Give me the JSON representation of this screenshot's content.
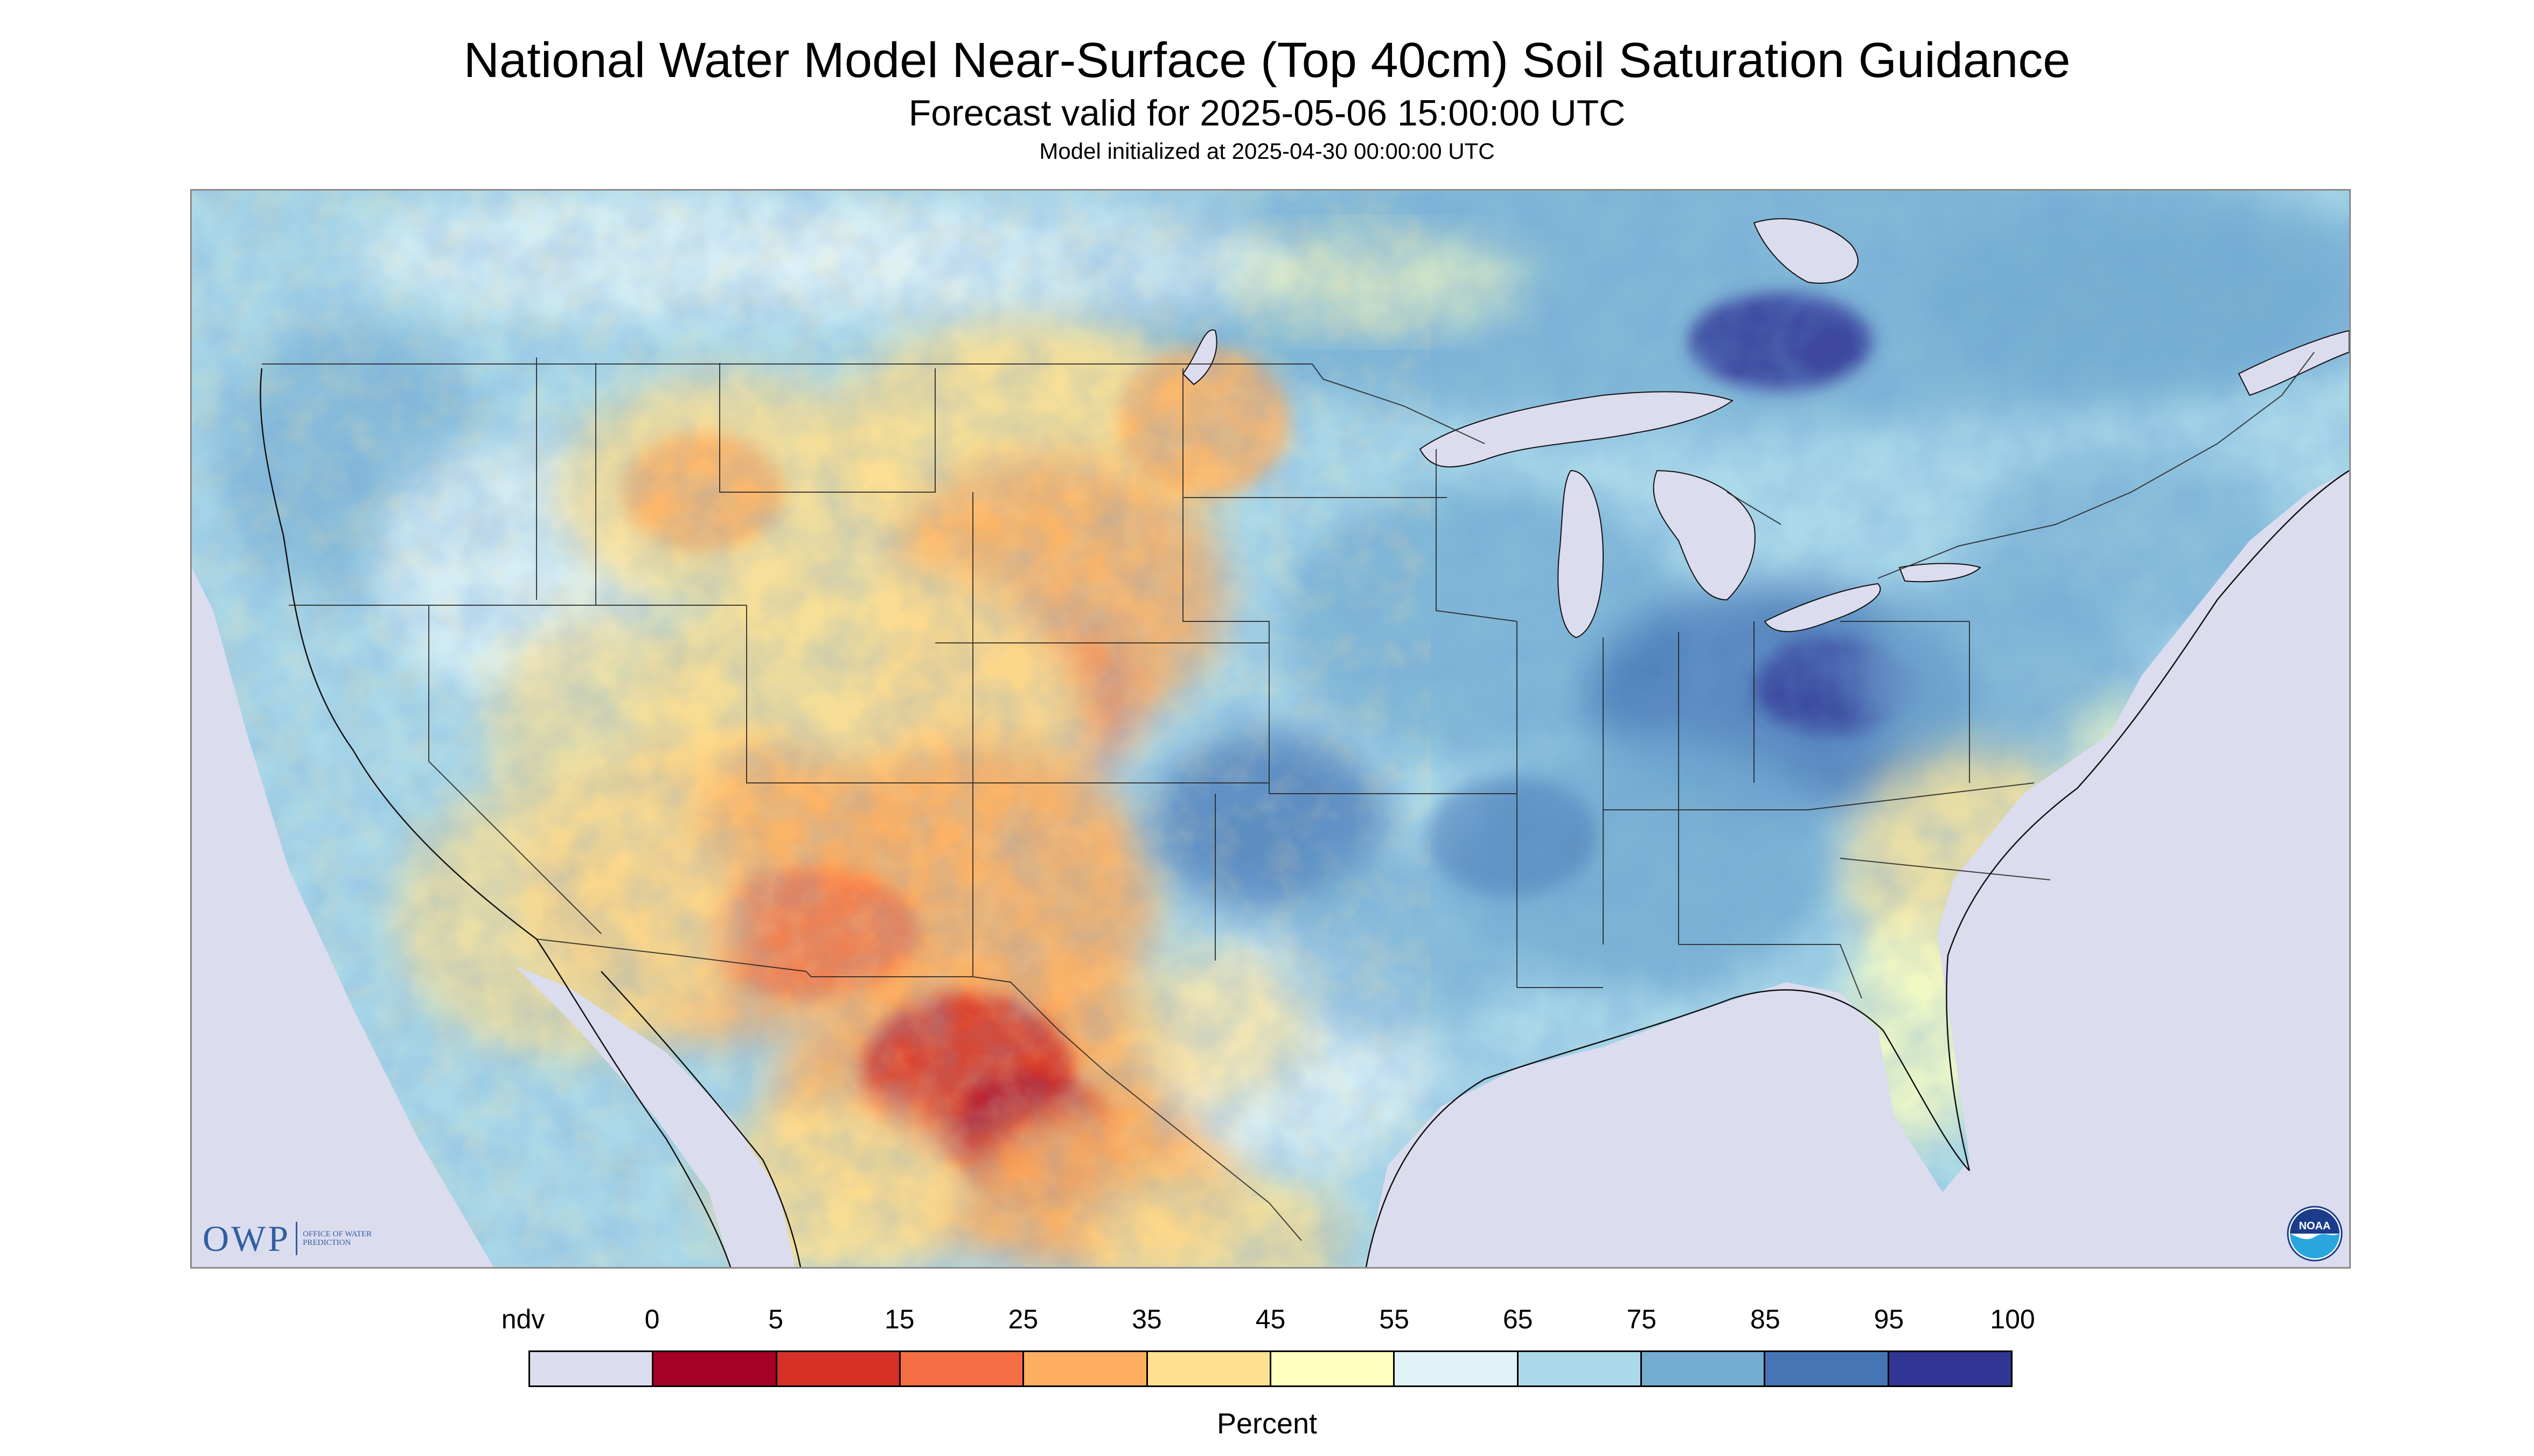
{
  "title": "National Water Model Near-Surface (Top 40cm) Soil Saturation Guidance",
  "subtitle": "Forecast valid for 2025-05-06 15:00:00 UTC",
  "init_line": "Model initialized at 2025-04-30 00:00:00 UTC",
  "legend": {
    "unit": "Percent",
    "tick_labels": [
      "ndv",
      "0",
      "5",
      "15",
      "25",
      "35",
      "45",
      "55",
      "65",
      "75",
      "85",
      "95",
      "100"
    ],
    "bins": [
      {
        "label": "ndv",
        "color": "#dcdcef"
      },
      {
        "label": "0-5",
        "color": "#a50026"
      },
      {
        "label": "5-15",
        "color": "#d73027"
      },
      {
        "label": "15-25",
        "color": "#f46d43"
      },
      {
        "label": "25-35",
        "color": "#fdae61"
      },
      {
        "label": "35-45",
        "color": "#fee090"
      },
      {
        "label": "45-55",
        "color": "#ffffbf"
      },
      {
        "label": "55-65",
        "color": "#e0f3f8"
      },
      {
        "label": "65-75",
        "color": "#abd9e9"
      },
      {
        "label": "75-85",
        "color": "#74add1"
      },
      {
        "label": "85-95",
        "color": "#4575b4"
      },
      {
        "label": "95-100",
        "color": "#313695"
      }
    ]
  },
  "logos": {
    "owp": {
      "letters": "OWP",
      "subtext": "Office of Water Prediction"
    },
    "noaa": {
      "text": "NOAA",
      "icon": "noaa-emblem-icon"
    }
  },
  "map": {
    "projection_outside_color": "#dcdcef",
    "water_color": "#dcdcef",
    "dominant_patterns": [
      {
        "region": "Southwest and Mexico",
        "level": "0-35"
      },
      {
        "region": "Great Plains west",
        "level": "25-45"
      },
      {
        "region": "Midwest, Ohio Valley, Southeast",
        "level": "65-95"
      },
      {
        "region": "Canada",
        "level": "55-85"
      }
    ]
  }
}
